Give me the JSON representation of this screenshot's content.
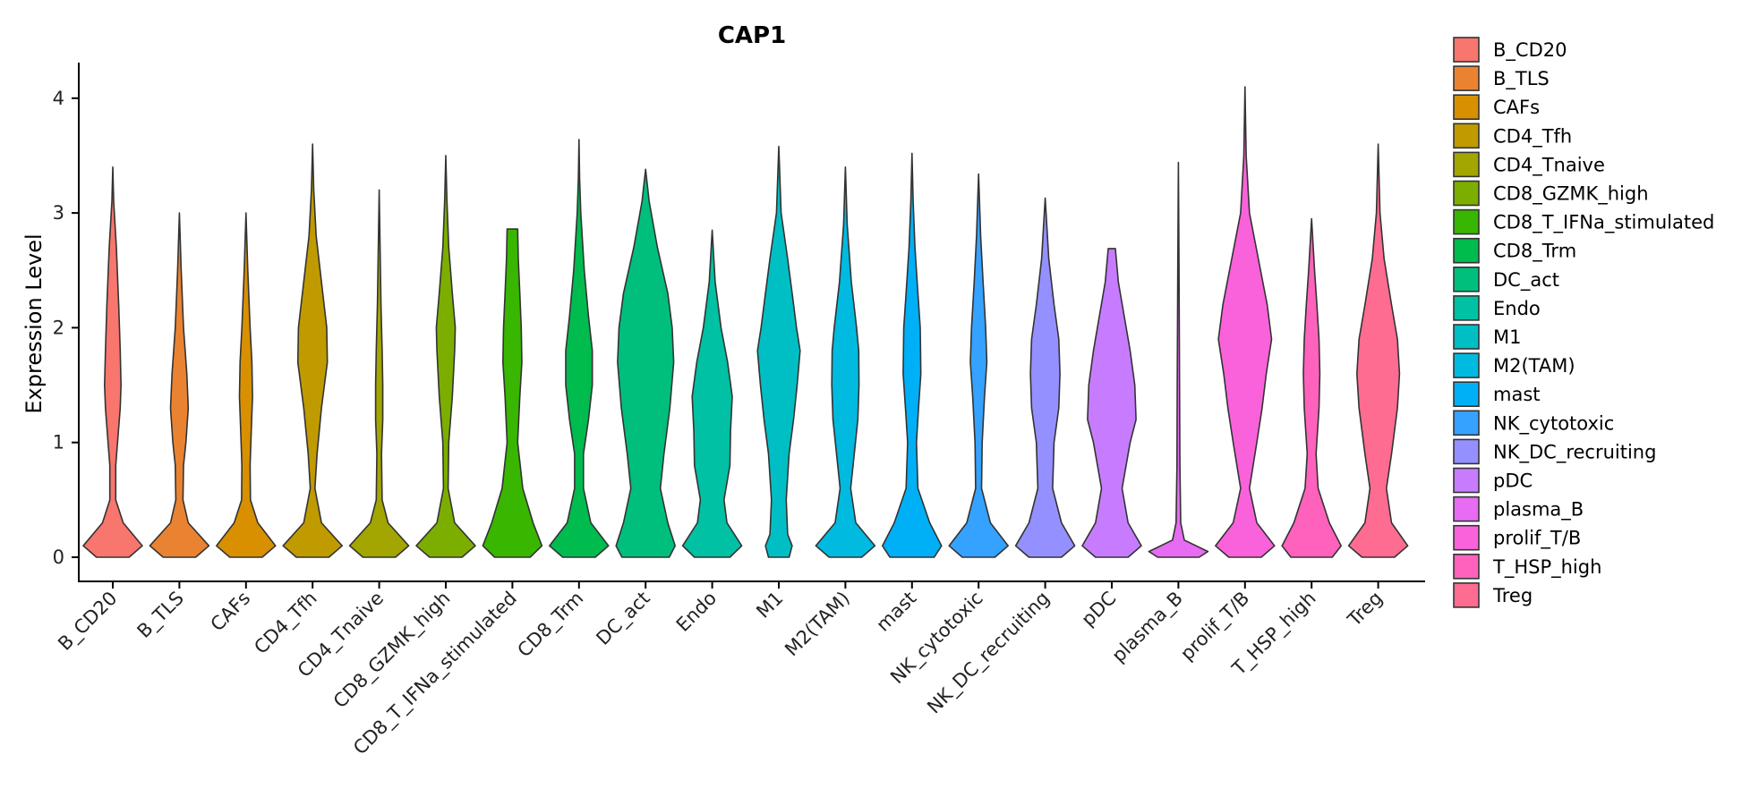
{
  "chart_data": {
    "type": "violin",
    "title": "CAP1",
    "xlabel": "",
    "ylabel": "Expression Level",
    "ylim": [
      -0.1,
      4.3
    ],
    "yticks": [
      0,
      1,
      2,
      3,
      4
    ],
    "legend_position": "right",
    "categories": [
      "B_CD20",
      "B_TLS",
      "CAFs",
      "CD4_Tfh",
      "CD4_Tnaive",
      "CD8_GZMK_high",
      "CD8_T_IFNa_stimulated",
      "CD8_Trm",
      "DC_act",
      "Endo",
      "M1",
      "M2(TAM)",
      "mast",
      "NK_cytotoxic",
      "NK_DC_recruiting",
      "pDC",
      "plasma_B",
      "prolif_T/B",
      "T_HSP_high",
      "Treg"
    ],
    "colors": [
      "#F8766D",
      "#EA8331",
      "#D89000",
      "#C09B00",
      "#A3A500",
      "#7CAE00",
      "#39B600",
      "#00BB4E",
      "#00BF7D",
      "#00C1A3",
      "#00BFC4",
      "#00BAE0",
      "#00B0F6",
      "#35A2FF",
      "#9590FF",
      "#C77CFF",
      "#E76BF3",
      "#FA62DB",
      "#FF62BC",
      "#FF6C91"
    ],
    "y_max": [
      3.4,
      3.02,
      3.02,
      3.63,
      3.22,
      3.5,
      2.86,
      3.64,
      3.38,
      2.85,
      3.58,
      3.4,
      3.52,
      3.34,
      3.13,
      2.69,
      3.44,
      4.1,
      2.95,
      3.6
    ],
    "density_profiles": [
      {
        "y": [
          0,
          0.1,
          0.3,
          0.5,
          0.8,
          1.0,
          1.3,
          1.5,
          1.8,
          2.2,
          2.7,
          3.1,
          3.4
        ],
        "w": [
          0.55,
          1,
          0.35,
          0.1,
          0.1,
          0.16,
          0.25,
          0.28,
          0.25,
          0.2,
          0.12,
          0.03,
          0
        ]
      },
      {
        "y": [
          0,
          0.1,
          0.3,
          0.5,
          0.8,
          1.0,
          1.3,
          1.6,
          2.0,
          2.5,
          3.0
        ],
        "w": [
          0.55,
          1,
          0.3,
          0.12,
          0.14,
          0.22,
          0.3,
          0.25,
          0.14,
          0.06,
          0
        ]
      },
      {
        "y": [
          0,
          0.1,
          0.3,
          0.5,
          0.8,
          1.1,
          1.4,
          1.7,
          2.0,
          2.5,
          3.0
        ],
        "w": [
          0.55,
          1,
          0.4,
          0.15,
          0.14,
          0.18,
          0.22,
          0.2,
          0.14,
          0.06,
          0
        ]
      },
      {
        "y": [
          0,
          0.1,
          0.3,
          0.6,
          0.9,
          1.3,
          1.7,
          2.0,
          2.4,
          2.8,
          3.2,
          3.6
        ],
        "w": [
          0.55,
          1,
          0.3,
          0.08,
          0.15,
          0.3,
          0.5,
          0.48,
          0.3,
          0.12,
          0.04,
          0
        ]
      },
      {
        "y": [
          0,
          0.1,
          0.3,
          0.5,
          0.9,
          1.2,
          1.5,
          1.8,
          2.2,
          2.7,
          3.2
        ],
        "w": [
          0.55,
          1,
          0.3,
          0.1,
          0.08,
          0.12,
          0.12,
          0.1,
          0.06,
          0.03,
          0
        ]
      },
      {
        "y": [
          0,
          0.1,
          0.3,
          0.6,
          1.0,
          1.4,
          1.8,
          2.0,
          2.3,
          2.7,
          3.1,
          3.5
        ],
        "w": [
          0.55,
          1,
          0.3,
          0.08,
          0.1,
          0.22,
          0.3,
          0.32,
          0.22,
          0.1,
          0.04,
          0
        ]
      },
      {
        "y": [
          0,
          0.1,
          0.3,
          0.6,
          1.0,
          1.4,
          1.7,
          2.0,
          2.3,
          2.6,
          2.86
        ],
        "w": [
          0.6,
          1,
          0.7,
          0.35,
          0.18,
          0.25,
          0.32,
          0.3,
          0.25,
          0.2,
          0.18
        ]
      },
      {
        "y": [
          0,
          0.1,
          0.3,
          0.6,
          0.9,
          1.2,
          1.5,
          1.8,
          2.1,
          2.5,
          3.0,
          3.3,
          3.64
        ],
        "w": [
          0.55,
          1,
          0.4,
          0.15,
          0.15,
          0.32,
          0.45,
          0.45,
          0.32,
          0.18,
          0.06,
          0.02,
          0
        ]
      },
      {
        "y": [
          0,
          0.1,
          0.3,
          0.6,
          0.9,
          1.3,
          1.7,
          2.0,
          2.3,
          2.7,
          3.1,
          3.38
        ],
        "w": [
          0.8,
          1,
          0.75,
          0.5,
          0.62,
          0.82,
          0.95,
          0.9,
          0.75,
          0.4,
          0.12,
          0
        ]
      },
      {
        "y": [
          0,
          0.1,
          0.3,
          0.5,
          0.8,
          1.1,
          1.4,
          1.7,
          2.0,
          2.4,
          2.85
        ],
        "w": [
          0.6,
          1,
          0.5,
          0.4,
          0.6,
          0.62,
          0.68,
          0.52,
          0.3,
          0.1,
          0
        ]
      },
      {
        "y": [
          0,
          0.1,
          0.2,
          0.5,
          0.9,
          1.2,
          1.5,
          1.8,
          2.0,
          2.3,
          2.6,
          3.0,
          3.58
        ],
        "w": [
          0.35,
          0.45,
          0.3,
          0.25,
          0.35,
          0.5,
          0.62,
          0.72,
          0.6,
          0.45,
          0.3,
          0.08,
          0
        ]
      },
      {
        "y": [
          0,
          0.1,
          0.3,
          0.6,
          0.9,
          1.2,
          1.5,
          1.8,
          2.0,
          2.4,
          2.9,
          3.4
        ],
        "w": [
          0.55,
          1,
          0.35,
          0.18,
          0.3,
          0.42,
          0.46,
          0.45,
          0.38,
          0.2,
          0.06,
          0
        ]
      },
      {
        "y": [
          0,
          0.1,
          0.3,
          0.6,
          1.0,
          1.3,
          1.6,
          2.0,
          2.3,
          2.7,
          3.1,
          3.52
        ],
        "w": [
          0.75,
          1,
          0.6,
          0.2,
          0.15,
          0.22,
          0.3,
          0.28,
          0.2,
          0.1,
          0.04,
          0
        ]
      },
      {
        "y": [
          0,
          0.1,
          0.3,
          0.6,
          1.0,
          1.4,
          1.7,
          2.0,
          2.4,
          2.8,
          3.34
        ],
        "w": [
          0.55,
          1,
          0.4,
          0.1,
          0.12,
          0.2,
          0.28,
          0.24,
          0.15,
          0.07,
          0
        ]
      },
      {
        "y": [
          0,
          0.1,
          0.3,
          0.6,
          1.0,
          1.3,
          1.6,
          1.9,
          2.2,
          2.6,
          3.13
        ],
        "w": [
          0.55,
          1,
          0.55,
          0.25,
          0.3,
          0.46,
          0.5,
          0.46,
          0.3,
          0.12,
          0
        ]
      },
      {
        "y": [
          0,
          0.1,
          0.3,
          0.6,
          1.0,
          1.2,
          1.5,
          1.8,
          2.1,
          2.4,
          2.69
        ],
        "w": [
          0.55,
          1,
          0.55,
          0.35,
          0.62,
          0.82,
          0.78,
          0.62,
          0.42,
          0.22,
          0.12
        ]
      },
      {
        "y": [
          0,
          0.05,
          0.15,
          0.3,
          0.8,
          1.5,
          2.5,
          3.44
        ],
        "w": [
          0.7,
          1,
          0.2,
          0.08,
          0.05,
          0.04,
          0.02,
          0
        ]
      },
      {
        "y": [
          0,
          0.1,
          0.3,
          0.6,
          1.0,
          1.3,
          1.6,
          1.9,
          2.2,
          2.6,
          3.0,
          3.5,
          4.1
        ],
        "w": [
          0.55,
          1,
          0.4,
          0.15,
          0.4,
          0.58,
          0.72,
          0.9,
          0.75,
          0.45,
          0.15,
          0.04,
          0
        ]
      },
      {
        "y": [
          0,
          0.1,
          0.3,
          0.6,
          0.9,
          1.3,
          1.6,
          1.9,
          2.2,
          2.5,
          2.95
        ],
        "w": [
          0.7,
          1,
          0.6,
          0.22,
          0.15,
          0.25,
          0.28,
          0.25,
          0.18,
          0.1,
          0
        ]
      },
      {
        "y": [
          0,
          0.1,
          0.3,
          0.6,
          0.9,
          1.3,
          1.6,
          1.9,
          2.2,
          2.6,
          3.0,
          3.6
        ],
        "w": [
          0.55,
          1,
          0.45,
          0.28,
          0.45,
          0.65,
          0.72,
          0.65,
          0.45,
          0.2,
          0.06,
          0
        ]
      }
    ]
  }
}
